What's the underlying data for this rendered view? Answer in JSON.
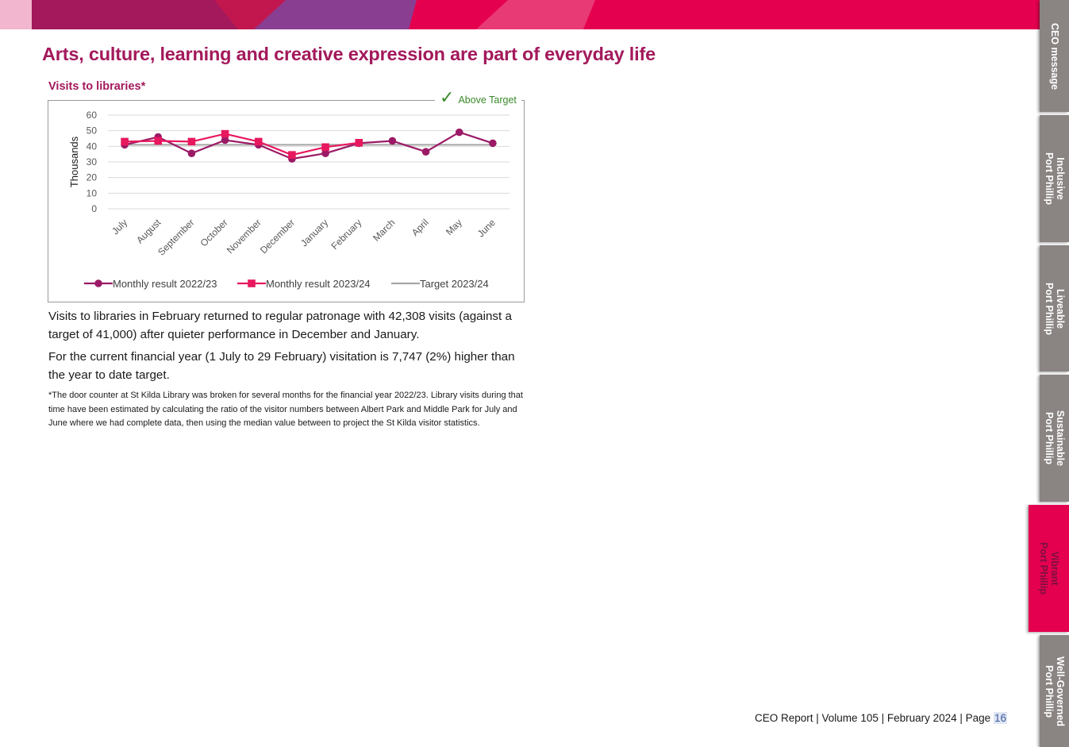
{
  "heading": "Arts, culture, learning and creative expression are part of everyday life",
  "chart_title": "Visits to libraries*",
  "status": {
    "label": "Above Target",
    "icon": "check-icon",
    "color": "#3a8a2a"
  },
  "chart_data": {
    "type": "line",
    "title": "",
    "ylabel": "Thousands",
    "xlabel": "",
    "ylim": [
      0,
      60
    ],
    "yticks": [
      0,
      10,
      20,
      30,
      40,
      50,
      60
    ],
    "grid": true,
    "legend_position": "bottom",
    "categories": [
      "July",
      "August",
      "September",
      "October",
      "November",
      "December",
      "January",
      "February",
      "March",
      "April",
      "May",
      "June"
    ],
    "series": [
      {
        "name": "Monthly result 2022/23",
        "marker": "circle",
        "color": "#9b1a66",
        "values": [
          41,
          46,
          35.5,
          44,
          41,
          32,
          35.5,
          42,
          43.5,
          36.5,
          49,
          42
        ]
      },
      {
        "name": "Monthly result 2023/24",
        "marker": "square",
        "color": "#e8185e",
        "values": [
          43,
          43.5,
          43,
          48,
          43,
          34.5,
          39.5,
          42.3,
          null,
          null,
          null,
          null
        ]
      },
      {
        "name": "Target 2023/24",
        "marker": "none",
        "color": "#a6a6a6",
        "values": [
          41,
          41,
          41,
          41,
          41,
          41,
          41,
          41,
          41,
          41,
          41,
          41
        ]
      }
    ]
  },
  "paragraphs": [
    "Visits to libraries in February returned to regular patronage with 42,308 visits (against a target of 41,000) after quieter performance in December and January.",
    "For the current financial year (1 July to 29 February) visitation is 7,747 (2%) higher than the year to date target."
  ],
  "footnote": "*The door counter at St Kilda Library was broken for several months for the financial year 2022/23. Library visits during that time have been estimated by calculating the ratio of the visitor numbers between Albert Park and Middle Park for July and June where we had complete data, then using the median value between to project the St Kilda visitor statistics.",
  "footer": {
    "text": "CEO Report | Volume 105 | February 2024 | Page ",
    "page": "16"
  },
  "side_tabs": [
    {
      "line1": "CEO message",
      "line2": ""
    },
    {
      "line1": "Inclusive",
      "line2": "Port Phillip"
    },
    {
      "line1": "Liveable",
      "line2": "Port Phillip"
    },
    {
      "line1": "Sustainable",
      "line2": "Port Phillip"
    },
    {
      "line1": "Vibrant",
      "line2": "Port Phillip",
      "active": true
    },
    {
      "line1": "Well-Governed",
      "line2": "Port Phillip"
    }
  ],
  "colors": {
    "accent": "#e5004f",
    "heading": "#a3195b",
    "tab_gray": "#8a8483"
  }
}
